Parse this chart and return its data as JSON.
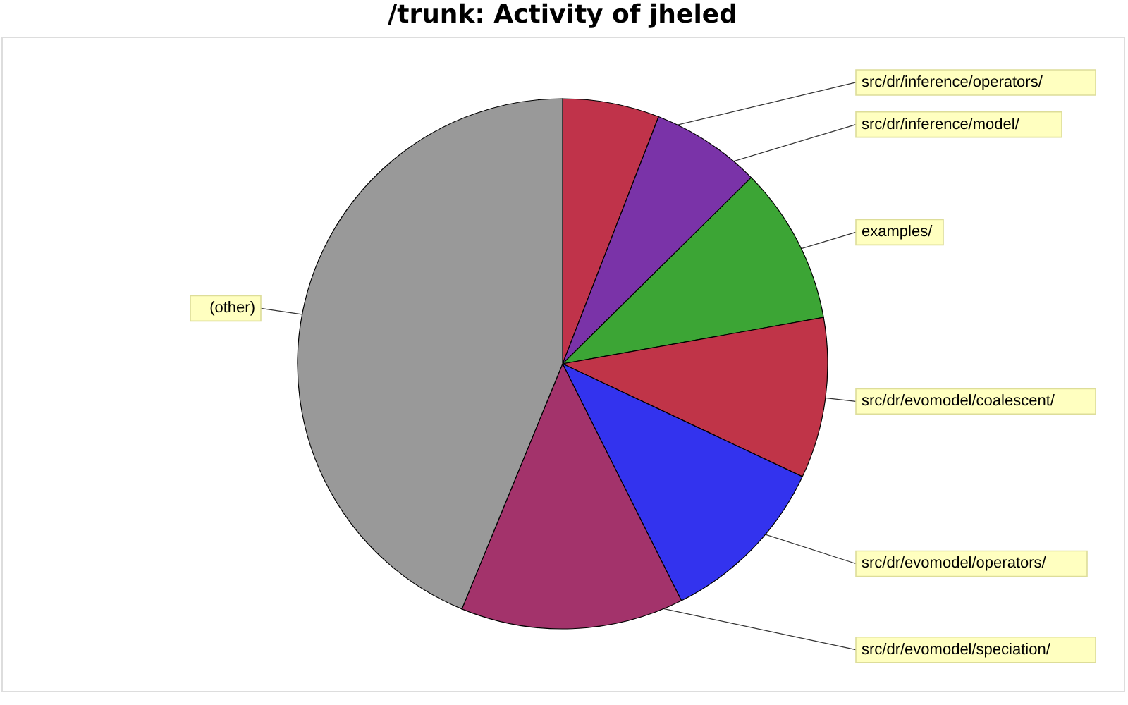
{
  "chart_data": {
    "type": "pie",
    "title": "/trunk: Activity of jheled",
    "categories": [
      "src/dr/inference/operators/",
      "src/dr/inference/model/",
      "examples/",
      "src/dr/evomodel/coalescent/",
      "src/dr/evomodel/operators/",
      "src/dr/evomodel/speciation/",
      "(other)"
    ],
    "values": [
      5.9,
      6.7,
      9.6,
      9.8,
      10.6,
      13.6,
      43.8
    ],
    "colors": [
      "#c0334a",
      "#7a33a8",
      "#3ca535",
      "#c03448",
      "#3333ee",
      "#a3336b",
      "#999999"
    ],
    "legend": false
  }
}
